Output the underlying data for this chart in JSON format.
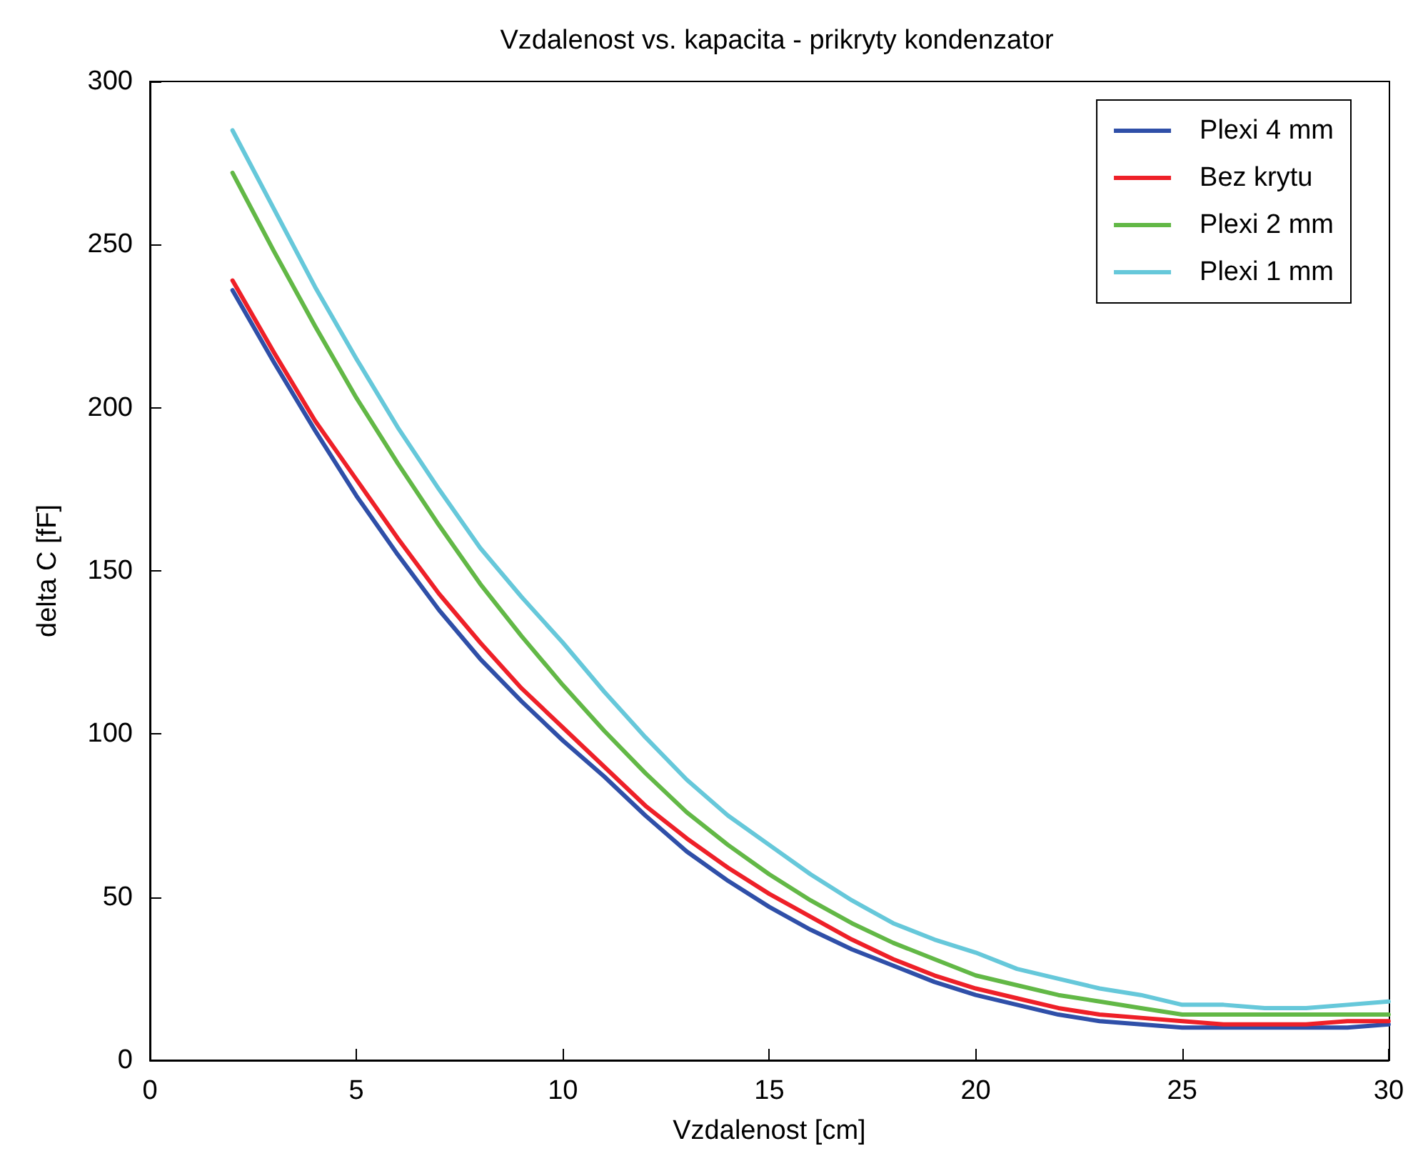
{
  "chart_data": {
    "type": "line",
    "title": "Vzdalenost vs. kapacita - prikryty kondenzator",
    "xlabel": "Vzdalenost [cm]",
    "ylabel": "delta C [fF]",
    "x": [
      2,
      3,
      4,
      5,
      6,
      7,
      8,
      9,
      10,
      11,
      12,
      13,
      14,
      15,
      16,
      17,
      18,
      19,
      20,
      21,
      22,
      23,
      24,
      25,
      26,
      27,
      28,
      29,
      30
    ],
    "series": [
      {
        "name": "Plexi 4 mm",
        "color": "#2f4fa8",
        "values": [
          236,
          214,
          193,
          173,
          155,
          138,
          123,
          110,
          98,
          87,
          75,
          64,
          55,
          47,
          40,
          34,
          29,
          24,
          20,
          17,
          14,
          12,
          11,
          10,
          10,
          10,
          10,
          10,
          11
        ]
      },
      {
        "name": "Bez krytu",
        "color": "#ee2028",
        "values": [
          239,
          217,
          196,
          178,
          160,
          143,
          128,
          114,
          102,
          90,
          78,
          68,
          59,
          51,
          44,
          37,
          31,
          26,
          22,
          19,
          16,
          14,
          13,
          12,
          11,
          11,
          11,
          12,
          12
        ]
      },
      {
        "name": "Plexi 2 mm",
        "color": "#62b846",
        "values": [
          272,
          248,
          225,
          203,
          183,
          164,
          146,
          130,
          115,
          101,
          88,
          76,
          66,
          57,
          49,
          42,
          36,
          31,
          26,
          23,
          20,
          18,
          16,
          14,
          14,
          14,
          14,
          14,
          14
        ]
      },
      {
        "name": "Plexi 1 mm",
        "color": "#66c8da",
        "values": [
          285,
          261,
          237,
          215,
          194,
          175,
          157,
          142,
          128,
          113,
          99,
          86,
          75,
          66,
          57,
          49,
          42,
          37,
          33,
          28,
          25,
          22,
          20,
          17,
          17,
          16,
          16,
          17,
          18
        ]
      }
    ],
    "xlim": [
      0,
      30
    ],
    "xticks": [
      0,
      5,
      10,
      15,
      20,
      25,
      30
    ],
    "ylim": [
      0,
      300
    ],
    "yticks": [
      0,
      50,
      100,
      150,
      200,
      250,
      300
    ],
    "grid": false,
    "legend": "top right",
    "marker": "none",
    "line_style": "solid"
  }
}
